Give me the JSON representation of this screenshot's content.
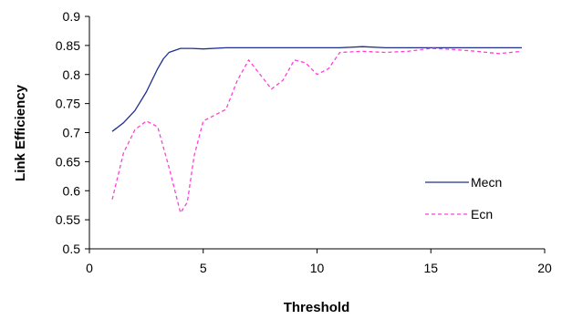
{
  "chart_data": {
    "type": "line",
    "xlabel": "Threshold",
    "ylabel": "Link Efficiency",
    "xlim": [
      0,
      20
    ],
    "ylim": [
      0.5,
      0.9
    ],
    "x_ticks": [
      "0",
      "5",
      "10",
      "15",
      "20"
    ],
    "y_ticks": [
      "0.5",
      "0.55",
      "0.6",
      "0.65",
      "0.7",
      "0.75",
      "0.8",
      "0.85",
      "0.9"
    ],
    "grid": false,
    "legend_position": "right",
    "series": [
      {
        "name": "Mecn",
        "color": "#1f2f8f",
        "style": "solid",
        "x": [
          1,
          1.5,
          2,
          2.5,
          3,
          3.25,
          3.5,
          4,
          4.5,
          5,
          6,
          7,
          8,
          9,
          10,
          11,
          12,
          13,
          14,
          15,
          16,
          17,
          18,
          19
        ],
        "y": [
          0.702,
          0.717,
          0.738,
          0.77,
          0.81,
          0.827,
          0.838,
          0.845,
          0.845,
          0.844,
          0.846,
          0.846,
          0.846,
          0.846,
          0.846,
          0.846,
          0.848,
          0.846,
          0.846,
          0.846,
          0.846,
          0.846,
          0.846,
          0.846
        ]
      },
      {
        "name": "Ecn",
        "color": "#ff3fd6",
        "style": "dashed",
        "x": [
          1,
          1.5,
          2,
          2.5,
          3,
          3.5,
          4,
          4.3,
          4.6,
          5,
          5.5,
          6,
          6.5,
          7,
          7.5,
          8,
          8.5,
          9,
          9.5,
          10,
          10.5,
          11,
          12,
          13,
          14,
          15,
          16,
          17,
          18,
          19
        ],
        "y": [
          0.585,
          0.665,
          0.705,
          0.72,
          0.71,
          0.64,
          0.562,
          0.58,
          0.66,
          0.72,
          0.73,
          0.74,
          0.79,
          0.825,
          0.8,
          0.775,
          0.79,
          0.825,
          0.82,
          0.8,
          0.81,
          0.838,
          0.84,
          0.838,
          0.84,
          0.845,
          0.843,
          0.84,
          0.836,
          0.84
        ]
      }
    ]
  }
}
